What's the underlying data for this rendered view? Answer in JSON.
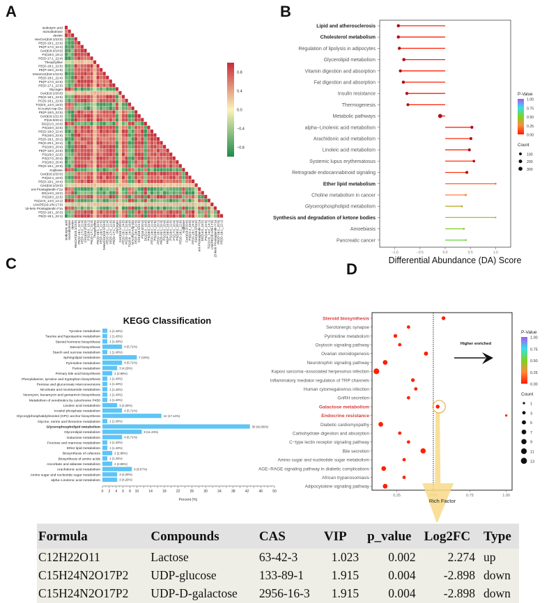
{
  "panels": {
    "a": "A",
    "b": "B",
    "c": "C",
    "d": "D"
  },
  "chart_data": [
    {
      "type": "heatmap",
      "labels": [
        "Isobutyric acid",
        "Isomaltotriose",
        "dextrin",
        "HexCer(d18:1/23:0)",
        "PE(O-19:1_22:6)",
        "PE(P-17:0_22:4)",
        "Cer(d18:2/18:0)",
        "PS(18:0_18:1)",
        "PE(O-17:1_22:4)",
        "Theophylline",
        "PE(O-18:1_22:5)",
        "PE(P-18:0_22:5)",
        "SHexCer(d18:1/16:0)",
        "PE(O-18:1_22:4)",
        "PE(P-17:0_22:5)",
        "PE(O-17:1_22:5)",
        "Glycogen",
        "Cer(d16:1/20:0)",
        "PE(O-18:1_24:5)",
        "PC(O-16:1_22:6)",
        "TG(8:0_14:0_18:0)",
        "N-Acetyl-Asp-Glu",
        "PE(P-18:0_22:5)",
        "Cer(d18:1/21:0)",
        "PI(16:0/20:4)",
        "DG(21:0_16:0)",
        "PS(16:0_22:6)",
        "PE(O-18:0_22:4)",
        "PS(18:0_22:6)",
        "PE(O-18:1_20:1)",
        "PE(O-20:1_22:4)",
        "PS(18:0_20:4)",
        "PE(P-16:0_24:5)",
        "PS(18:0_22:5)",
        "PS(17:0_20:4)",
        "PS(18:0_20:4)",
        "PE(O-18:1_22:6)",
        "Kojibiose",
        "Cer(d18:2/20:0)",
        "PS(22:4_18:0)",
        "PE(O-18:1_24:4)",
        "Cer(d16:1/18:0)",
        "ent-Prostaglandin F2a",
        "DG(14:0_18:2)",
        "PS(18:0_22:5)",
        "TG(10:0_14:0_14:1)",
        "LNAPE(18:1/N-17:0)",
        "15-keto Prostaglandin F1a",
        "PE(O-18:1_20:3)",
        "PE(O-18:1_22:1)"
      ],
      "colorbar_ticks": [
        0.8,
        0.4,
        0.0,
        -0.4,
        -0.8
      ],
      "range": [
        -1,
        1
      ],
      "colors": {
        "high": "#c62d3b",
        "mid": "#faf3b8",
        "low": "#1f8a4c"
      }
    },
    {
      "type": "bar",
      "style": "lollipop",
      "categories": [
        "Lipid and atherosclerosis",
        "Cholesterol metabolism",
        "Regulation of lipolysis in adipocytes",
        "Glycerolipid metabolism",
        "Vitamin digestion and absorption",
        "Fat digestion and absorption",
        "Insulin resistance",
        "Thermogenesis",
        "Metabolic pathways",
        "alpha−Linolenic acid metabolism",
        "Arachidonic acid metabolism",
        "Linoleic acid metabolism",
        "Systemic lupus erythematosus",
        "Retrograde endocannabinoid signaling",
        "Ether lipid metabolism",
        "Choline metabolism in cancer",
        "Glycerophospholipid metabolism",
        "Synthesis and degradation of ketone bodies",
        "Amoebiasis",
        "Pancreatic cancer"
      ],
      "bold": [
        "Lipid and atherosclerosis",
        "Cholesterol metabolism",
        "Ether lipid metabolism",
        "Synthesis and degradation of ketone bodies"
      ],
      "values": [
        -0.93,
        -0.93,
        -0.91,
        -0.82,
        -0.89,
        -0.83,
        -0.76,
        -0.74,
        -0.1,
        0.53,
        0.51,
        0.48,
        0.57,
        0.43,
        1.0,
        0.41,
        0.33,
        1.0,
        0.37,
        0.41
      ],
      "p_values": [
        0.01,
        0.01,
        0.01,
        0.01,
        0.01,
        0.01,
        0.01,
        0.01,
        0.01,
        0.03,
        0.03,
        0.03,
        0.05,
        0.06,
        0.18,
        0.22,
        0.38,
        0.45,
        0.5,
        0.55
      ],
      "counts": [
        150,
        150,
        140,
        160,
        130,
        150,
        140,
        120,
        320,
        130,
        130,
        120,
        80,
        110,
        20,
        30,
        30,
        10,
        20,
        20
      ],
      "xlabel": "Differential Abundance (DA) Score",
      "xlim": [
        -1.3,
        1.3
      ],
      "xticks": [
        "-1.0",
        "-0.5",
        "0.0",
        "0.5",
        "1.0"
      ],
      "legend": {
        "color_title": "P-Value",
        "color_ticks": [
          "1.00",
          "0.75",
          "0.50",
          "0.25",
          "0.00"
        ],
        "size_title": "Count",
        "size_ticks": [
          "100",
          "200",
          "300"
        ],
        "placement": "right"
      }
    },
    {
      "type": "bar",
      "orientation": "horizontal",
      "title": "KEGG Classification",
      "categories": [
        "Tyrosine metabolism",
        "Taurine and hypotaurine metabolism",
        "Steroid hormone biosynthesis",
        "Steroid biosynthesis",
        "Starch and sucrose metabolism",
        "Sphingolipid metabolism",
        "Pyrimidine metabolism",
        "Purine metabolism",
        "Primary bile acid biosynthesis",
        "Phenylalanine, tyrosine and tryptophan biosynthesis",
        "Pentose and glucuronate interconversions",
        "Nicotinate and nicotinamide metabolism",
        "Neomycin, kanamycin and gentamicin biosynthesis",
        "Metabolism of xenobiotics by cytochrome P450",
        "Linoleic acid metabolism",
        "Inositol phosphate metabolism",
        "Glycosylphosphatidylinositol (GPI)−anchor biosynthesis",
        "Glycine, serine and threonine metabolism",
        "Glycerophospholipid metabolism",
        "Glycerolipid metabolism",
        "Galactose metabolism",
        "Fructose and mannose metabolism",
        "Ether lipid metabolism",
        "Biosynthesis of cofactors",
        "Biosynthesis of amino acids",
        "Ascorbate and aldarate metabolism",
        "Arachidonic acid metabolism",
        "Amino sugar and nucleotide sugar metabolism",
        "alpha−Linolenic acid metabolism"
      ],
      "bold": [
        "Glycerophospholipid metabolism"
      ],
      "counts": [
        1,
        1,
        1,
        4,
        1,
        7,
        4,
        3,
        2,
        1,
        1,
        1,
        1,
        1,
        3,
        4,
        12,
        1,
        30,
        8,
        4,
        1,
        1,
        2,
        1,
        2,
        6,
        3,
        3
      ],
      "percent": [
        1.43,
        1.43,
        1.43,
        5.71,
        1.43,
        10,
        5.71,
        4.29,
        2.86,
        1.43,
        1.43,
        1.43,
        1.43,
        1.43,
        4.29,
        5.71,
        17.14,
        1.43,
        42.86,
        11.43,
        5.71,
        1.43,
        1.43,
        2.86,
        1.43,
        2.86,
        8.57,
        4.29,
        4.29
      ],
      "xlabel": "Percent (%)",
      "xlim": [
        0,
        50
      ],
      "xticks": [
        0,
        2,
        4,
        6,
        8,
        10,
        14,
        18,
        22,
        26,
        30,
        34,
        38,
        42,
        46,
        50
      ],
      "bar_color": "#5ec4f6"
    },
    {
      "type": "scatter",
      "categories": [
        "Steroid biosynthesis",
        "Serotonergic synapse",
        "Pyrimidine metabolism",
        "Oxytocin signaling pathway",
        "Ovarian steroidogenesis",
        "Neurotrophin signaling pathway",
        "Kaposi sarcoma−associated herpesvirus infection",
        "Inflammatory mediator regulation of TRP channels",
        "Human cytomegalovirus infection",
        "GnRH secretion",
        "Galactose metabolism",
        "Endocrine resistance",
        "Diabetic cardiomyopathy",
        "Carbohydrate digestion and absorption",
        "C−type lectin receptor signaling pathway",
        "Bile secretion",
        "Amino sugar and nucleotide sugar metabolism",
        "AGE−RAGE signaling pathway in diabetic complications",
        "African trypanosomiasis",
        "Adipocytokine signaling pathway"
      ],
      "highlighted": [
        "Steroid biosynthesis",
        "Galactose metabolism",
        "Endocrine resistance"
      ],
      "rich_factor": [
        0.57,
        0.33,
        0.24,
        0.27,
        0.45,
        0.17,
        0.11,
        0.36,
        0.38,
        0.33,
        0.53,
        1.0,
        0.14,
        0.27,
        0.33,
        0.43,
        0.3,
        0.16,
        0.3,
        0.17
      ],
      "counts": [
        4,
        3,
        4,
        3,
        5,
        7,
        11,
        4,
        3,
        3,
        4,
        1,
        7,
        3,
        3,
        9,
        3,
        7,
        3,
        7
      ],
      "p_values": [
        0.01,
        0.02,
        0.02,
        0.02,
        0.01,
        0.01,
        0.01,
        0.02,
        0.02,
        0.02,
        0.01,
        0.03,
        0.01,
        0.02,
        0.02,
        0.01,
        0.02,
        0.01,
        0.02,
        0.01
      ],
      "xlabel": "Rich Factor",
      "xlim": [
        0.08,
        1.04
      ],
      "xticks": [
        "0.25",
        "0.50",
        "0.75",
        "1.00"
      ],
      "reference_line": 0.5,
      "annotation": "Higher enriched",
      "legend": {
        "color_title": "P-Value",
        "color_ticks": [
          "1.00",
          "0.75",
          "0.50",
          "0.25",
          "0.00"
        ],
        "size_title": "Count",
        "size_ticks": [
          "1",
          "3",
          "5",
          "7",
          "9",
          "11",
          "13"
        ],
        "placement": "right"
      }
    }
  ],
  "table": {
    "headers": [
      "Formula",
      "Compounds",
      "CAS",
      "VIP",
      "p_value",
      "Log2FC",
      "Type"
    ],
    "rows": [
      [
        "C12H22O11",
        "Lactose",
        "63-42-3",
        "1.023",
        "0.002",
        "2.274",
        "up"
      ],
      [
        "C15H24N2O17P2",
        "UDP-glucose",
        "133-89-1",
        "1.915",
        "0.004",
        "-2.898",
        "down"
      ],
      [
        "C15H24N2O17P2",
        "UDP-D-galactose",
        "2956-16-3",
        "1.915",
        "0.004",
        "-2.898",
        "down"
      ]
    ]
  }
}
